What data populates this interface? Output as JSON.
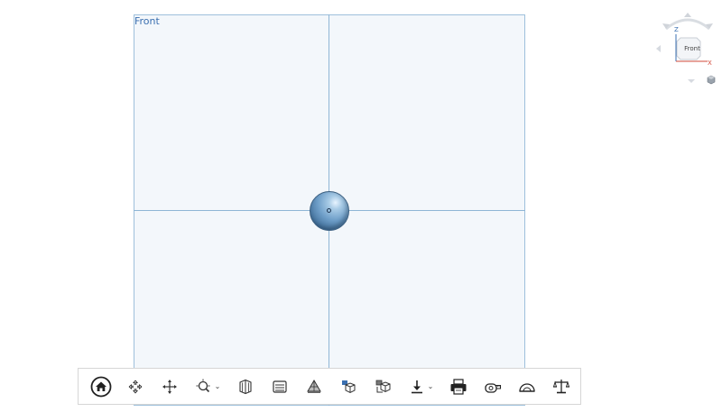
{
  "viewport": {
    "plane_label": "Front",
    "plane_color": "#f3f7fb",
    "axis_color": "#8fb6d6",
    "object": "sphere"
  },
  "view_cube": {
    "face_label": "Front",
    "axis_z": "Z",
    "axis_x": "X",
    "axis_x_color": "#d24a3a",
    "axis_z_color": "#3a6fb0"
  },
  "toolbar": {
    "buttons": [
      {
        "name": "home-view",
        "icon": "home-icon"
      },
      {
        "name": "orbit",
        "icon": "orbit-icon"
      },
      {
        "name": "pan",
        "icon": "pan-icon"
      },
      {
        "name": "zoom",
        "icon": "zoom-icon",
        "has_dropdown": true
      },
      {
        "name": "section",
        "icon": "section-icon"
      },
      {
        "name": "layers",
        "icon": "layers-icon"
      },
      {
        "name": "measure-surface",
        "icon": "surface-icon"
      },
      {
        "name": "view-cube",
        "icon": "cube-icon"
      },
      {
        "name": "explode",
        "icon": "explode-icon"
      },
      {
        "name": "download",
        "icon": "download-icon",
        "has_dropdown": true
      },
      {
        "name": "print",
        "icon": "print-icon"
      },
      {
        "name": "measure-length",
        "icon": "tape-measure-icon"
      },
      {
        "name": "measure-angle",
        "icon": "protractor-icon"
      },
      {
        "name": "mass-properties",
        "icon": "balance-icon"
      }
    ],
    "dropdown_glyph": "⌄"
  }
}
